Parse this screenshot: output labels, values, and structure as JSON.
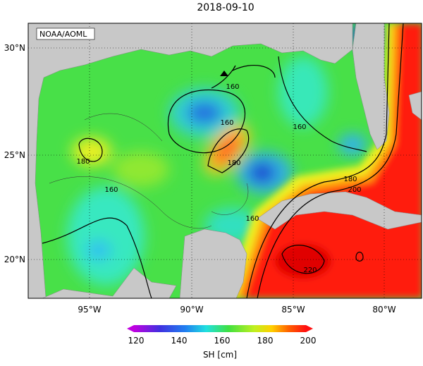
{
  "title": "2018-09-10",
  "source": "NOAA/AOML",
  "lat_ticks": [
    "30°N",
    "25°N",
    "20°N"
  ],
  "lon_ticks": [
    "95°W",
    "90°W",
    "85°W",
    "80°W"
  ],
  "colorbar": {
    "ticks": [
      120,
      140,
      160,
      180,
      200
    ],
    "label": "SH [cm]"
  },
  "contour_labels": [
    "160",
    "160",
    "160",
    "160",
    "180",
    "180",
    "180",
    "200",
    "160",
    "220"
  ]
}
